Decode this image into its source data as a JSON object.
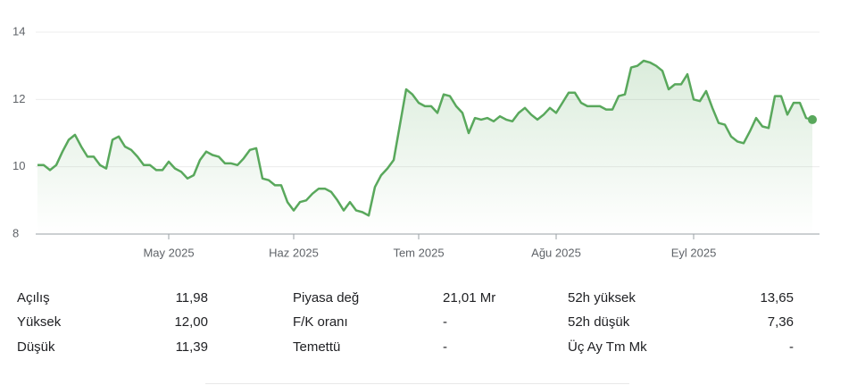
{
  "chart_data": {
    "type": "line",
    "color": "#59a85c",
    "ylim": [
      8,
      14
    ],
    "yticks": [
      8,
      10,
      12,
      14
    ],
    "grid": true,
    "categories": [
      null,
      null,
      null,
      null,
      null,
      null,
      null,
      null,
      null,
      null,
      null,
      null,
      null,
      null,
      null,
      null,
      null,
      null,
      null,
      null,
      null,
      "May 2025",
      null,
      null,
      null,
      null,
      null,
      null,
      null,
      null,
      null,
      null,
      null,
      null,
      null,
      null,
      null,
      null,
      null,
      null,
      null,
      "Haz 2025",
      null,
      null,
      null,
      null,
      null,
      null,
      null,
      null,
      null,
      null,
      null,
      null,
      null,
      null,
      null,
      null,
      null,
      null,
      null,
      "Tem 2025",
      null,
      null,
      null,
      null,
      null,
      null,
      null,
      null,
      null,
      null,
      null,
      null,
      null,
      null,
      null,
      null,
      null,
      null,
      null,
      null,
      null,
      "Ağu 2025",
      null,
      null,
      null,
      null,
      null,
      null,
      null,
      null,
      null,
      null,
      null,
      null,
      null,
      null,
      null,
      null,
      null,
      null,
      null,
      null,
      null,
      "Eyl 2025",
      null,
      null,
      null,
      null,
      null,
      null,
      null,
      null,
      null,
      null,
      null,
      null,
      null,
      null,
      null,
      null,
      null,
      null,
      null
    ],
    "values": [
      10.05,
      10.05,
      9.9,
      10.05,
      10.45,
      10.8,
      10.95,
      10.6,
      10.3,
      10.3,
      10.05,
      9.95,
      10.8,
      10.9,
      10.6,
      10.5,
      10.3,
      10.05,
      10.05,
      9.9,
      9.9,
      10.15,
      9.95,
      9.85,
      9.65,
      9.75,
      10.2,
      10.45,
      10.35,
      10.3,
      10.1,
      10.1,
      10.05,
      10.25,
      10.5,
      10.55,
      9.65,
      9.6,
      9.45,
      9.45,
      8.95,
      8.7,
      8.95,
      9.0,
      9.2,
      9.35,
      9.35,
      9.25,
      9.0,
      8.7,
      8.95,
      8.7,
      8.65,
      8.55,
      9.4,
      9.75,
      9.95,
      10.2,
      11.25,
      12.3,
      12.15,
      11.9,
      11.8,
      11.8,
      11.6,
      12.15,
      12.1,
      11.8,
      11.6,
      11.0,
      11.45,
      11.4,
      11.45,
      11.35,
      11.5,
      11.4,
      11.35,
      11.6,
      11.75,
      11.55,
      11.4,
      11.55,
      11.75,
      11.6,
      11.9,
      12.2,
      12.2,
      11.9,
      11.8,
      11.8,
      11.8,
      11.7,
      11.7,
      12.1,
      12.15,
      12.95,
      13.0,
      13.15,
      13.1,
      13.0,
      12.85,
      12.3,
      12.45,
      12.45,
      12.75,
      12.0,
      11.95,
      12.25,
      11.75,
      11.3,
      11.25,
      10.9,
      10.75,
      10.7,
      11.05,
      11.45,
      11.2,
      11.15,
      12.1,
      12.1,
      11.55,
      11.9,
      11.9,
      11.45,
      11.4
    ]
  },
  "stats": [
    [
      [
        "Açılış",
        "11,98"
      ],
      [
        "Yüksek",
        "12,00"
      ],
      [
        "Düşük",
        "11,39"
      ]
    ],
    [
      [
        "Piyasa değ",
        "21,01 Mr"
      ],
      [
        "F/K oranı",
        "-"
      ],
      [
        "Temettü",
        "-"
      ]
    ],
    [
      [
        "52h yüksek",
        "13,65"
      ],
      [
        "52h düşük",
        "7,36"
      ],
      [
        "Üç Ay Tm Mk",
        "-"
      ]
    ]
  ]
}
